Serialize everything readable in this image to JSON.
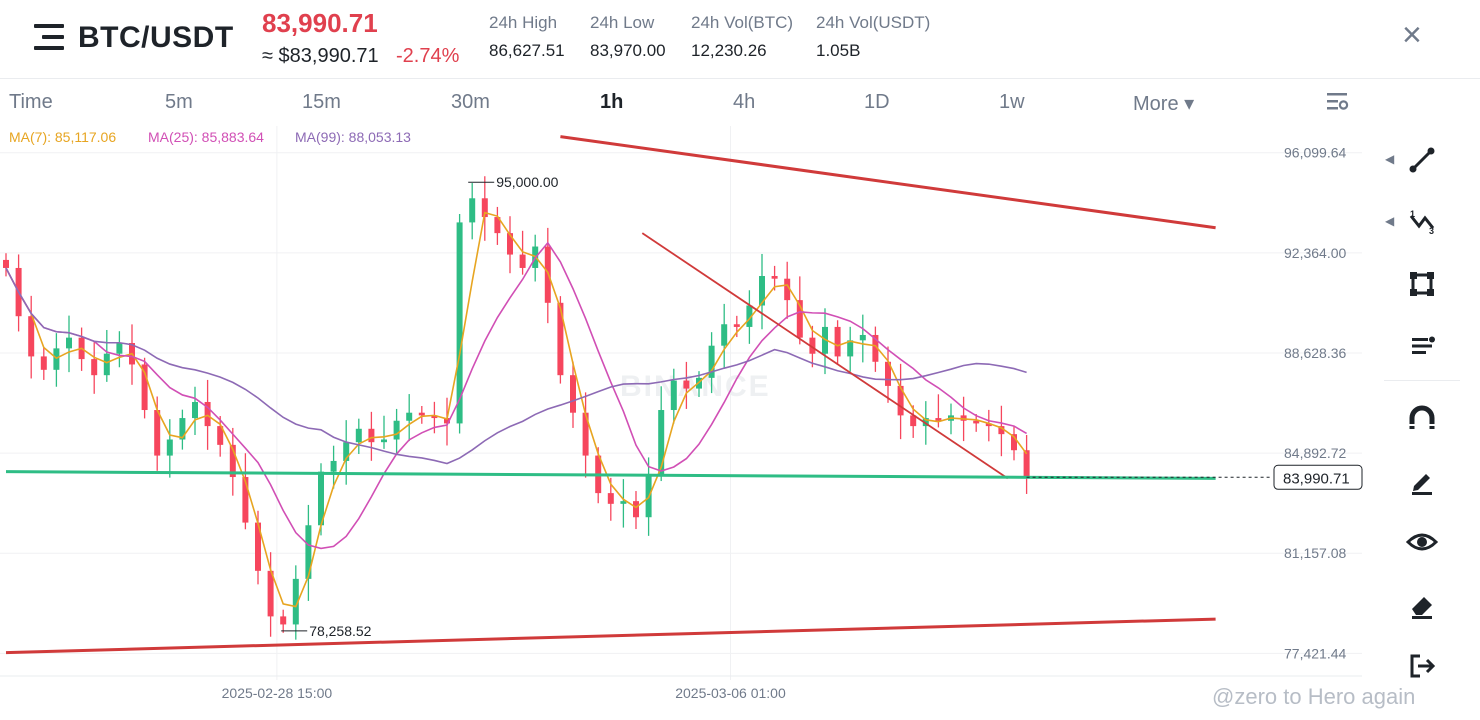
{
  "header": {
    "pair": "BTC/USDT",
    "price": "83,990.71",
    "approx_price": "≈ $83,990.71",
    "change": "-2.74%",
    "stats": [
      {
        "label": "24h High",
        "value": "86,627.51"
      },
      {
        "label": "24h Low",
        "value": "83,970.00"
      },
      {
        "label": "24h Vol(BTC)",
        "value": "12,230.26"
      },
      {
        "label": "24h Vol(USDT)",
        "value": "1.05B"
      }
    ],
    "close_glyph": "×"
  },
  "tabs": [
    {
      "label": "Time",
      "active": false
    },
    {
      "label": "5m",
      "active": false
    },
    {
      "label": "15m",
      "active": false
    },
    {
      "label": "30m",
      "active": false
    },
    {
      "label": "1h",
      "active": true
    },
    {
      "label": "4h",
      "active": false
    },
    {
      "label": "1D",
      "active": false
    },
    {
      "label": "1w",
      "active": false
    },
    {
      "label": "More ▾",
      "active": false
    }
  ],
  "chart": {
    "ma_legend": [
      {
        "label": "MA(7): 85,117.06",
        "color": "#e7a521"
      },
      {
        "label": "MA(25): 85,883.64",
        "color": "#d14fb5"
      },
      {
        "label": "MA(99): 88,053.13",
        "color": "#8d6ab5"
      }
    ],
    "y_ticks": [
      "96,099.64",
      "92,364.00",
      "88,628.36",
      "84,892.72",
      "81,157.08",
      "77,421.44"
    ],
    "x_ticks": [
      "2025-02-28 15:00",
      "2025-03-06 01:00"
    ],
    "high_label": "95,000.00",
    "low_label": "78,258.52",
    "last_price_label": "83,990.71",
    "watermark_logo": "BINANCE",
    "colors": {
      "up": "#2ebd85",
      "down": "#f6465d",
      "trendline": "#d03a3a",
      "price_line": "#2ebd85"
    }
  },
  "chart_data": {
    "type": "candlestick",
    "timeframe": "1h",
    "y_range": [
      76800,
      96500
    ],
    "highest": 95000.0,
    "lowest": 78258.52,
    "last": 83990.71,
    "ma": [
      {
        "name": "MA(7)",
        "value": 85117.06
      },
      {
        "name": "MA(25)",
        "value": 85883.64
      },
      {
        "name": "MA(99)",
        "value": 88053.13
      }
    ],
    "close_path": [
      91800,
      90000,
      88500,
      88000,
      88800,
      89200,
      88400,
      87800,
      88600,
      89000,
      88200,
      86500,
      84800,
      85400,
      86200,
      86800,
      85900,
      85200,
      84000,
      82300,
      80500,
      78800,
      78500,
      80200,
      82200,
      84200,
      84600,
      85300,
      85800,
      85300,
      85400,
      86100,
      86400,
      86300,
      86200,
      86000,
      93500,
      94400,
      93700,
      93100,
      92300,
      91800,
      92600,
      90500,
      87800,
      86400,
      84800,
      83400,
      83000,
      83100,
      82500,
      84100,
      86500,
      87600,
      87300,
      87700,
      88900,
      89700,
      89600,
      90400,
      91500,
      91400,
      90600,
      89200,
      88600,
      89600,
      88500,
      89100,
      89300,
      88300,
      87400,
      86300,
      85900,
      86200,
      86100,
      86300,
      86100,
      86000,
      85900,
      85600,
      85000,
      84000
    ],
    "trendlines": [
      {
        "name": "upper-long",
        "from": {
          "i": 44,
          "price": 96700
        },
        "to": {
          "i": 96,
          "price": 93300
        }
      },
      {
        "name": "descending",
        "from": {
          "i": 50.5,
          "price": 93100
        },
        "to": {
          "i": 79.5,
          "price": 83950
        }
      },
      {
        "name": "lower-long",
        "from": {
          "i": 0,
          "price": 77450
        },
        "to": {
          "i": 96,
          "price": 78700
        }
      },
      {
        "name": "horizontal",
        "from": {
          "i": 0,
          "price": 84200
        },
        "to": {
          "i": 96,
          "price": 83950
        }
      }
    ]
  },
  "toolbar": {
    "tools": [
      {
        "name": "trend-line-tool-icon",
        "has_arrow": true
      },
      {
        "name": "multi-point-line-tool-icon",
        "has_arrow": true
      },
      {
        "name": "shape-tool-icon",
        "has_arrow": false
      },
      {
        "name": "text-tool-icon",
        "has_arrow": false
      },
      {
        "name": "magnet-tool-icon",
        "has_arrow": false
      },
      {
        "name": "pen-tool-icon",
        "has_arrow": false
      },
      {
        "name": "visibility-tool-icon",
        "has_arrow": false
      },
      {
        "name": "eraser-tool-icon",
        "has_arrow": false
      },
      {
        "name": "exit-tool-icon",
        "has_arrow": false
      }
    ]
  },
  "watermark": "@zero to Hero again"
}
